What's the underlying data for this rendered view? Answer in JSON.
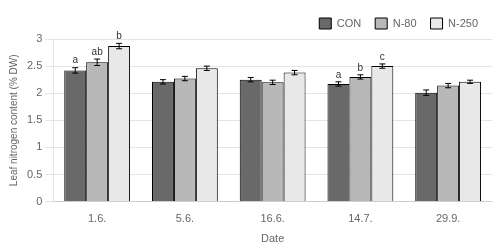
{
  "chart_data": {
    "type": "bar",
    "xlabel": "Date",
    "ylabel": "Leaf nitrogen content (% DW)",
    "categories": [
      "1.6.",
      "5.6.",
      "16.6.",
      "14.7.",
      "29.9."
    ],
    "series": [
      {
        "name": "CON",
        "color": "#696969",
        "values": [
          2.42,
          2.21,
          2.25,
          2.17,
          2.01
        ],
        "errors": [
          0.05,
          0.04,
          0.04,
          0.04,
          0.05
        ],
        "annotations": [
          "a",
          null,
          null,
          "a",
          null
        ]
      },
      {
        "name": "N-80",
        "color": "#b8b8b8",
        "values": [
          2.57,
          2.27,
          2.2,
          2.3,
          2.14
        ],
        "errors": [
          0.06,
          0.04,
          0.04,
          0.04,
          0.04
        ],
        "annotations": [
          "ab",
          null,
          null,
          "b",
          null
        ]
      },
      {
        "name": "N-250",
        "color": "#e8e8e8",
        "values": [
          2.87,
          2.46,
          2.38,
          2.5,
          2.21
        ],
        "errors": [
          0.05,
          0.04,
          0.04,
          0.04,
          0.03
        ],
        "annotations": [
          "b",
          null,
          null,
          "c",
          null
        ]
      }
    ],
    "ylim": [
      0,
      3.0
    ],
    "yticks": [
      0,
      0.5,
      1.0,
      1.5,
      2.0,
      2.5,
      3.0
    ],
    "grid": true,
    "legend": "upper right"
  }
}
